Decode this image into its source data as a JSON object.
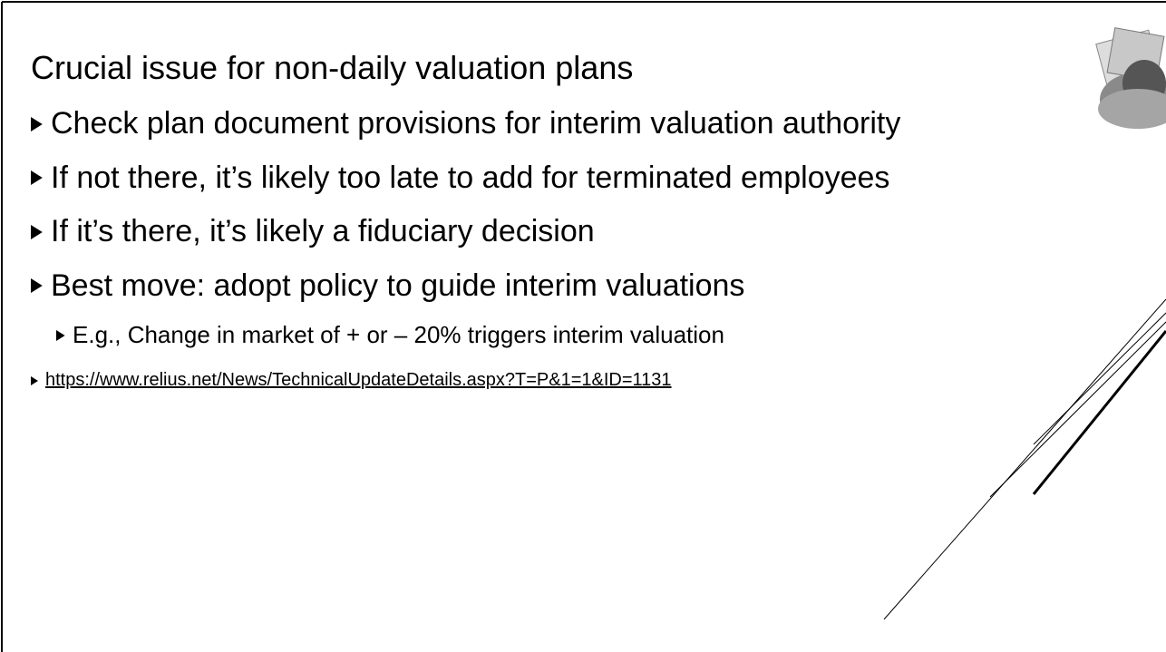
{
  "slide": {
    "title": "Crucial issue for non-daily valuation plans",
    "bullets": [
      "Check plan document provisions for interim valuation authority",
      "If not there, it’s likely too late to add for terminated employees",
      "If it’s there, it’s likely a fiduciary decision",
      "Best move: adopt policy to guide interim valuations"
    ],
    "sub_bullet": "E.g., Change in market of + or – 20% triggers interim valuation",
    "link": "https://www.relius.net/News/TechnicalUpdateDetails.aspx?T=P&1=1&ID=1131"
  }
}
